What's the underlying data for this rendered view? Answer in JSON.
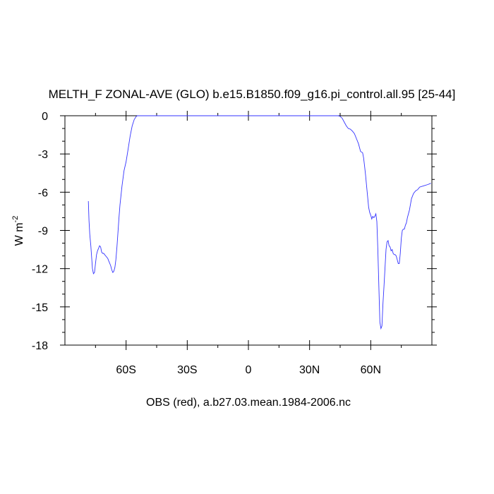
{
  "chart_data": {
    "type": "line",
    "title": "MELTH_F ZONAL-AVE (GLO) b.e15.B1850.f09_g16.pi_control.all.95 [25-44]",
    "ylabel_main": "W m",
    "ylabel_sup": "-2",
    "xlabel": "OBS (red), a.b27.03.mean.1984-2006.nc",
    "xlim": [
      -90,
      90
    ],
    "ylim": [
      -18,
      0
    ],
    "yticks": [
      0,
      -3,
      -6,
      -9,
      -12,
      -15,
      -18
    ],
    "ytick_labels": [
      "0",
      "-3",
      "-6",
      "-9",
      "-12",
      "-15",
      "-18"
    ],
    "xticks": [
      -60,
      -30,
      0,
      30,
      60
    ],
    "xtick_labels": [
      "60S",
      "30S",
      "0",
      "30N",
      "60N"
    ],
    "grid": false,
    "series": [
      {
        "color": "#3333ff",
        "x": [
          -78.5,
          -78.2,
          -77.8,
          -77.3,
          -76.8,
          -76.5,
          -76.0,
          -75.5,
          -75.0,
          -74.5,
          -74.0,
          -73.5,
          -73.0,
          -72.5,
          -72.0,
          -71.5,
          -71.0,
          -70.5,
          -70.0,
          -69.5,
          -69.0,
          -68.5,
          -68.0,
          -67.5,
          -67.0,
          -66.5,
          -66.0,
          -65.5,
          -65.0,
          -64.5,
          -64.0,
          -63.5,
          -63.0,
          -62.0,
          -61.0,
          -60.0,
          -59.0,
          -58.0,
          -57.0,
          -56.0,
          -55.0,
          -54.5,
          -54.0,
          -53.5,
          -53.0,
          -52.5,
          -50.0,
          -48.0,
          0.0,
          40.0,
          44.0,
          45.0,
          46.0,
          47.0,
          48.0,
          49.0,
          50.0,
          51.0,
          52.0,
          53.0,
          54.0,
          55.0,
          56.0,
          56.5,
          57.0,
          57.5,
          58.0,
          59.0,
          59.5,
          60.0,
          60.5,
          61.0,
          61.5,
          62.0,
          62.5,
          63.0,
          63.5,
          64.0,
          64.5,
          65.0,
          65.5,
          66.0,
          66.5,
          67.0,
          67.5,
          68.0,
          68.5,
          69.0,
          69.5,
          70.0,
          70.5,
          71.0,
          71.5,
          72.0,
          72.5,
          73.0,
          73.5,
          74.0,
          74.5,
          75.0,
          75.5,
          76.0,
          76.5,
          77.0,
          77.5,
          78.0,
          79.0,
          80.0,
          81.0,
          82.0,
          83.0,
          84.0,
          86.0,
          88.0,
          89.5
        ],
        "y": [
          -6.7,
          -8.2,
          -9.3,
          -10.2,
          -11.3,
          -12.0,
          -12.4,
          -12.3,
          -11.6,
          -10.9,
          -10.6,
          -10.4,
          -10.2,
          -10.3,
          -10.7,
          -10.8,
          -10.8,
          -10.9,
          -11.0,
          -11.1,
          -11.2,
          -11.4,
          -11.6,
          -11.8,
          -12.1,
          -12.3,
          -12.2,
          -11.9,
          -11.3,
          -10.3,
          -9.2,
          -8.0,
          -7.0,
          -5.5,
          -4.3,
          -3.6,
          -2.6,
          -1.6,
          -0.8,
          -0.3,
          -0.05,
          0.0,
          0.0,
          0.0,
          0.0,
          0.0,
          0.0,
          0.0,
          0.0,
          0.0,
          0.0,
          -0.05,
          -0.2,
          -0.5,
          -0.8,
          -1.0,
          -1.05,
          -1.2,
          -1.4,
          -1.8,
          -2.2,
          -2.8,
          -2.9,
          -3.3,
          -4.0,
          -4.7,
          -5.6,
          -7.2,
          -7.6,
          -7.8,
          -8.1,
          -7.9,
          -8.0,
          -7.9,
          -7.7,
          -8.3,
          -10.5,
          -13.5,
          -16.2,
          -16.7,
          -16.5,
          -14.7,
          -13.4,
          -11.9,
          -10.5,
          -9.9,
          -9.8,
          -10.2,
          -10.3,
          -10.6,
          -10.5,
          -10.8,
          -10.9,
          -10.9,
          -11.0,
          -11.3,
          -11.6,
          -11.6,
          -10.8,
          -9.6,
          -9.0,
          -8.9,
          -8.9,
          -8.6,
          -8.4,
          -8.0,
          -7.4,
          -6.5,
          -6.1,
          -5.9,
          -5.8,
          -5.6,
          -5.5,
          -5.4,
          -5.3
        ]
      }
    ]
  }
}
